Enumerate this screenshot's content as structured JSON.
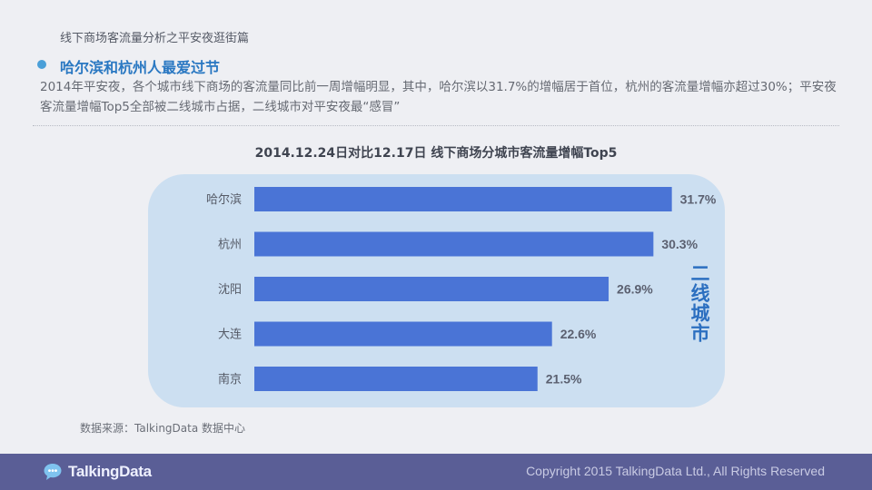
{
  "header": {
    "doc_title": "线下商场客流量分析之平安夜逛街篇",
    "section_heading": "哈尔滨和杭州人最爱过节",
    "intro_text": "2014年平安夜，各个城市线下商场的客流量同比前一周增幅明显，其中，哈尔滨以31.7%的增幅居于首位，杭州的客流量增幅亦超过30%；平安夜客流量增幅Top5全部被二线城市占据，二线城市对平安夜最“感冒”"
  },
  "chart_data": {
    "type": "bar",
    "orientation": "horizontal",
    "title": "2014.12.24日对比12.17日 线下商场分城市客流量增幅Top5",
    "categories": [
      "哈尔滨",
      "杭州",
      "沈阳",
      "大连",
      "南京"
    ],
    "values": [
      31.7,
      30.3,
      26.9,
      22.6,
      21.5
    ],
    "value_labels": [
      "31.7%",
      "30.3%",
      "26.9%",
      "22.6%",
      "21.5%"
    ],
    "group_label": "二线城市",
    "bar_color": "#4a74d6",
    "panel_color": "#ccdff1",
    "grid": false,
    "legend": "none"
  },
  "source_note": "数据来源：TalkingData 数据中心",
  "footer": {
    "logo_text": "TalkingData",
    "logo_icon": "chat-bubble-icon",
    "copyright": "Copyright 2015 TalkingData Ltd., All Rights Reserved"
  },
  "colors": {
    "accent": "#2a78c2",
    "bullet": "#4a9fd8",
    "footer_bg": "#5a5e96",
    "page_bg": "#eeeff3"
  }
}
